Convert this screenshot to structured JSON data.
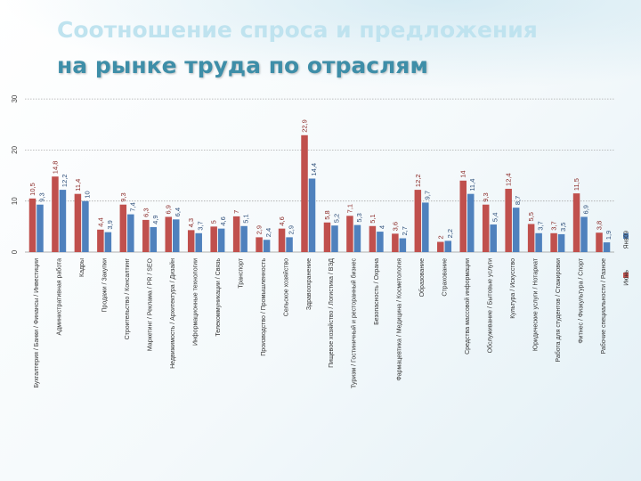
{
  "title": {
    "line1": "Соотношение спроса и предложения",
    "line2": "на рынке труда по отраслям"
  },
  "colors": {
    "demand": "#c0504d",
    "supply": "#4f81bd"
  },
  "chart_data": {
    "type": "bar",
    "yticks": [
      0,
      10,
      20,
      30
    ],
    "ylim": [
      0,
      30
    ],
    "grid": true,
    "legend": "right",
    "series": [
      {
        "name": "Янв09",
        "color": "#4f81bd",
        "values": [
          9.3,
          12.2,
          10,
          3.9,
          7.4,
          4.9,
          6.4,
          3.7,
          4.6,
          5.1,
          2.4,
          2.9,
          14.4,
          5.2,
          5.3,
          4,
          2.7,
          9.7,
          2.2,
          11.4,
          5.4,
          8.7,
          3.7,
          3.5,
          6.9,
          1.9
        ]
      },
      {
        "name": "Июнь",
        "color": "#c0504d",
        "values": [
          10.5,
          14.8,
          11.4,
          4.4,
          9.3,
          6.3,
          6.9,
          4.3,
          5,
          7,
          2.9,
          4.6,
          22.9,
          5.8,
          7.1,
          5.1,
          3.6,
          12.2,
          2,
          14,
          9.3,
          12.4,
          5.5,
          3.7,
          11.5,
          3.8
        ]
      }
    ],
    "value_labels": {
      "supply": [
        "9,3",
        "12,2",
        "10",
        "3,9",
        "7,4",
        "4,9",
        "6,4",
        "3,7",
        "4,6",
        "5,1",
        "2,4",
        "2,9",
        "14,4",
        "5,2",
        "5,3",
        "4",
        "2,7",
        "9,7",
        "2,2",
        "11,4",
        "5,4",
        "8,7",
        "3,7",
        "3,5",
        "6,9",
        "1,9"
      ],
      "demand": [
        "10,5",
        "14,8",
        "11,4",
        "4,4",
        "9,3",
        "6,3",
        "6,9",
        "4,3",
        "5",
        "7",
        "2,9",
        "4,6",
        "22,9",
        "5,8",
        "7,1",
        "5,1",
        "3,6",
        "12,2",
        "2",
        "14",
        "9,3",
        "12,4",
        "5,5",
        "3,7",
        "11,5",
        "3,8"
      ]
    },
    "categories": [
      "Бухгалтерия / Банки / Финансы / Инвестиции",
      "Административная работа",
      "Кадры",
      "Продажи / Закупки",
      "Строительство / Консалтинг",
      "Маркетинг / Реклама / PR / SEO",
      "Недвижимость / Архитектура / Дизайн",
      "Информационные технологии",
      "Телекоммуникации / Связь",
      "Транспорт",
      "Производство / Промышленность",
      "Сельское хозяйство",
      "Здравоохранение",
      "Пищевое хозяйство / Логистика / ВЭД",
      "Туризм / Гостиничный и ресторанный бизнес",
      "Безопасность / Охрана",
      "Фармацевтика / Медицина / Косметология",
      "Образование",
      "Страхование",
      "Средства массовой информации",
      "Обслуживание / Бытовые услуги",
      "Культура / Искусство",
      "Юридические услуги / Нотариат",
      "Работа для студентов / Стажировки",
      "Фитнес / Физкультура / Спорт",
      "Рабочие специальности / Разное"
    ]
  }
}
